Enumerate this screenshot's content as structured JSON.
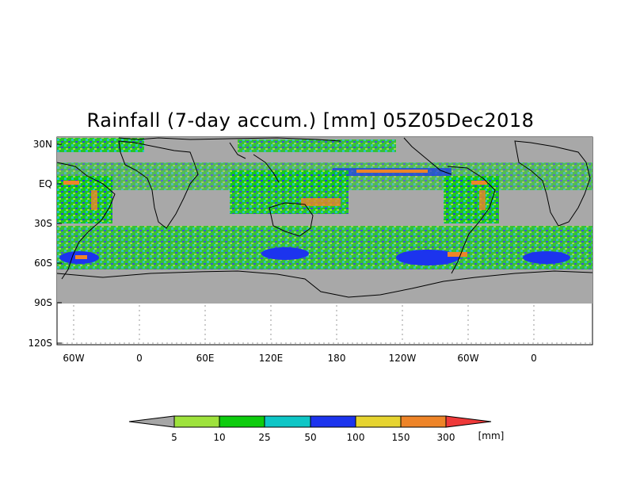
{
  "title": "Rainfall (7-day accum.) [mm] 05Z05Dec2018",
  "map": {
    "lat_labels": [
      "30N",
      "EQ",
      "30S",
      "60S",
      "90S",
      "120S"
    ],
    "lon_labels": [
      "60W",
      "0",
      "60E",
      "120E",
      "180",
      "120W",
      "60W",
      "0"
    ]
  },
  "legend": {
    "thresholds": [
      "5",
      "10",
      "25",
      "50",
      "100",
      "150",
      "300"
    ],
    "unit": "[mm]",
    "colors": [
      "#a6a6a6",
      "#9ee23c",
      "#0ecc0e",
      "#0ec6c6",
      "#1c34ee",
      "#e6d430",
      "#ee8428",
      "#ee3a3a"
    ]
  },
  "colors": {
    "ocean_gray": "#a8a8a8",
    "coast": "#000000"
  }
}
